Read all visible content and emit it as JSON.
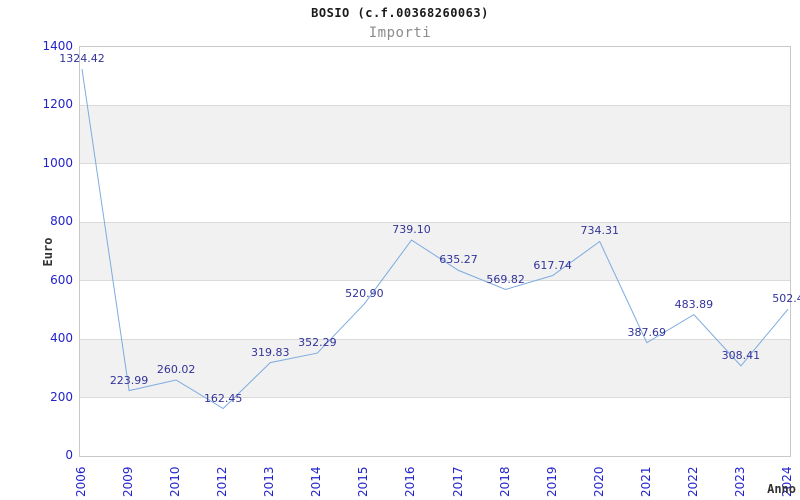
{
  "chart_data": {
    "type": "line",
    "title": "BOSIO (c.f.00368260063)",
    "subtitle": "Importi",
    "xlabel": "Anno",
    "ylabel": "Euro",
    "categories": [
      "2006",
      "2009",
      "2010",
      "2012",
      "2013",
      "2014",
      "2015",
      "2016",
      "2017",
      "2018",
      "2019",
      "2020",
      "2021",
      "2022",
      "2023",
      "2024"
    ],
    "values": [
      1324.42,
      223.99,
      260.02,
      162.45,
      319.83,
      352.29,
      520.9,
      739.1,
      635.27,
      569.82,
      617.74,
      734.31,
      387.69,
      483.89,
      308.41,
      502.4
    ],
    "point_labels": [
      "1324.42",
      "223.99",
      "260.02",
      "162.45",
      "319.83",
      "352.29",
      "520.90",
      "739.10",
      "635.27",
      "569.82",
      "617.74",
      "734.31",
      "387.69",
      "483.89",
      "308.41",
      "502.4"
    ],
    "ylim": [
      0,
      1400
    ],
    "ytick_step": 200,
    "yticks": [
      1400,
      1200,
      1000,
      800,
      600,
      400,
      200,
      0
    ],
    "grid": "horizontal",
    "band_rows": "alternating",
    "legend": "none",
    "colors": {
      "line": "#7dabe0",
      "tick_label": "#2323cc",
      "point_label": "#333399",
      "band": "#f1f1f1",
      "gridline": "#dadada",
      "plot_border": "#c9c9c9",
      "title": "#1a1a1a",
      "subtitle": "#8c8c8c",
      "axis_title": "#333333"
    }
  }
}
